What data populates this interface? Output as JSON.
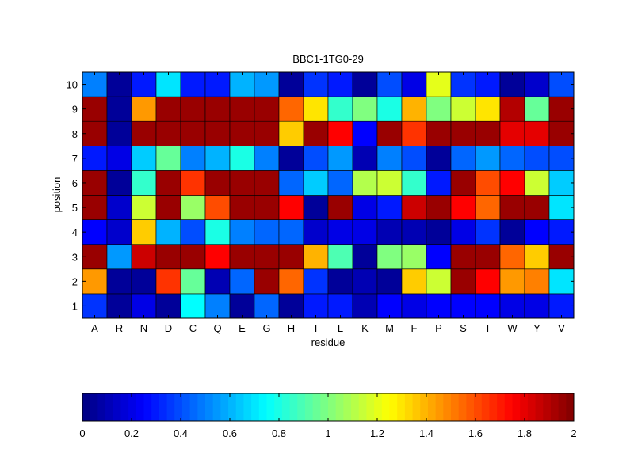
{
  "chart_data": [
    {
      "type": "heatmap",
      "title": "BBC1-1TG0-29",
      "xlabel": "residue",
      "ylabel": "position",
      "x_categories": [
        "A",
        "R",
        "N",
        "D",
        "C",
        "Q",
        "E",
        "G",
        "H",
        "I",
        "L",
        "K",
        "M",
        "F",
        "P",
        "S",
        "T",
        "W",
        "Y",
        "V"
      ],
      "y_categories": [
        "1",
        "2",
        "3",
        "4",
        "5",
        "6",
        "7",
        "8",
        "9",
        "10"
      ],
      "zlim": [
        0,
        2
      ],
      "colormap": "jet",
      "grid": true,
      "values": [
        [
          0.35,
          0.05,
          0.2,
          0.05,
          0.75,
          0.5,
          0.05,
          0.45,
          0.05,
          0.3,
          0.3,
          0.1,
          0.25,
          0.2,
          0.25,
          0.25,
          0.25,
          0.2,
          0.2,
          0.3
        ],
        [
          1.45,
          0.05,
          0.05,
          1.65,
          0.95,
          0.1,
          0.45,
          1.95,
          1.55,
          0.35,
          0.05,
          0.1,
          0.05,
          1.35,
          1.15,
          1.95,
          1.75,
          1.45,
          1.5,
          0.7
        ],
        [
          1.95,
          0.55,
          1.85,
          1.95,
          1.95,
          1.75,
          1.95,
          1.95,
          1.95,
          1.4,
          0.9,
          0.05,
          1.0,
          1.05,
          0.25,
          1.95,
          1.95,
          1.55,
          1.35,
          1.95
        ],
        [
          0.25,
          0.15,
          1.35,
          0.6,
          0.4,
          0.8,
          0.5,
          0.45,
          0.45,
          0.15,
          0.2,
          0.2,
          0.1,
          0.1,
          0.05,
          0.2,
          0.35,
          0.05,
          0.25,
          0.3
        ],
        [
          1.95,
          0.15,
          1.15,
          1.95,
          1.05,
          1.6,
          1.95,
          1.95,
          1.75,
          0.05,
          1.95,
          0.2,
          0.3,
          1.85,
          1.95,
          1.75,
          1.55,
          1.95,
          1.95,
          0.7
        ],
        [
          1.95,
          0.05,
          0.85,
          1.95,
          1.65,
          1.95,
          1.95,
          1.95,
          0.45,
          0.65,
          0.45,
          1.1,
          1.15,
          0.85,
          0.3,
          1.95,
          1.6,
          1.75,
          1.15,
          0.65
        ],
        [
          0.3,
          0.2,
          0.65,
          0.95,
          0.5,
          0.6,
          0.8,
          0.5,
          0.05,
          0.4,
          0.55,
          0.1,
          0.5,
          0.4,
          0.05,
          0.45,
          0.55,
          0.45,
          0.4,
          0.4
        ],
        [
          1.95,
          0.05,
          1.95,
          1.95,
          1.95,
          1.95,
          1.95,
          1.95,
          1.35,
          1.95,
          1.75,
          0.25,
          1.95,
          1.65,
          1.95,
          1.95,
          1.95,
          1.8,
          1.8,
          1.95
        ],
        [
          1.95,
          0.05,
          1.45,
          1.95,
          1.95,
          1.95,
          1.95,
          1.95,
          1.55,
          1.3,
          0.85,
          1.0,
          0.8,
          1.4,
          1.0,
          1.15,
          1.3,
          1.9,
          0.95,
          1.95
        ],
        [
          0.5,
          0.05,
          0.3,
          0.7,
          0.3,
          0.3,
          0.6,
          0.55,
          0.05,
          0.35,
          0.3,
          0.05,
          0.4,
          0.2,
          1.2,
          0.35,
          0.3,
          0.05,
          0.15,
          0.4
        ]
      ],
      "colorbar": {
        "orientation": "horizontal",
        "ticks": [
          "0",
          "0.2",
          "0.4",
          "0.6",
          "0.8",
          "1",
          "1.2",
          "1.4",
          "1.6",
          "1.8",
          "2"
        ]
      }
    }
  ]
}
